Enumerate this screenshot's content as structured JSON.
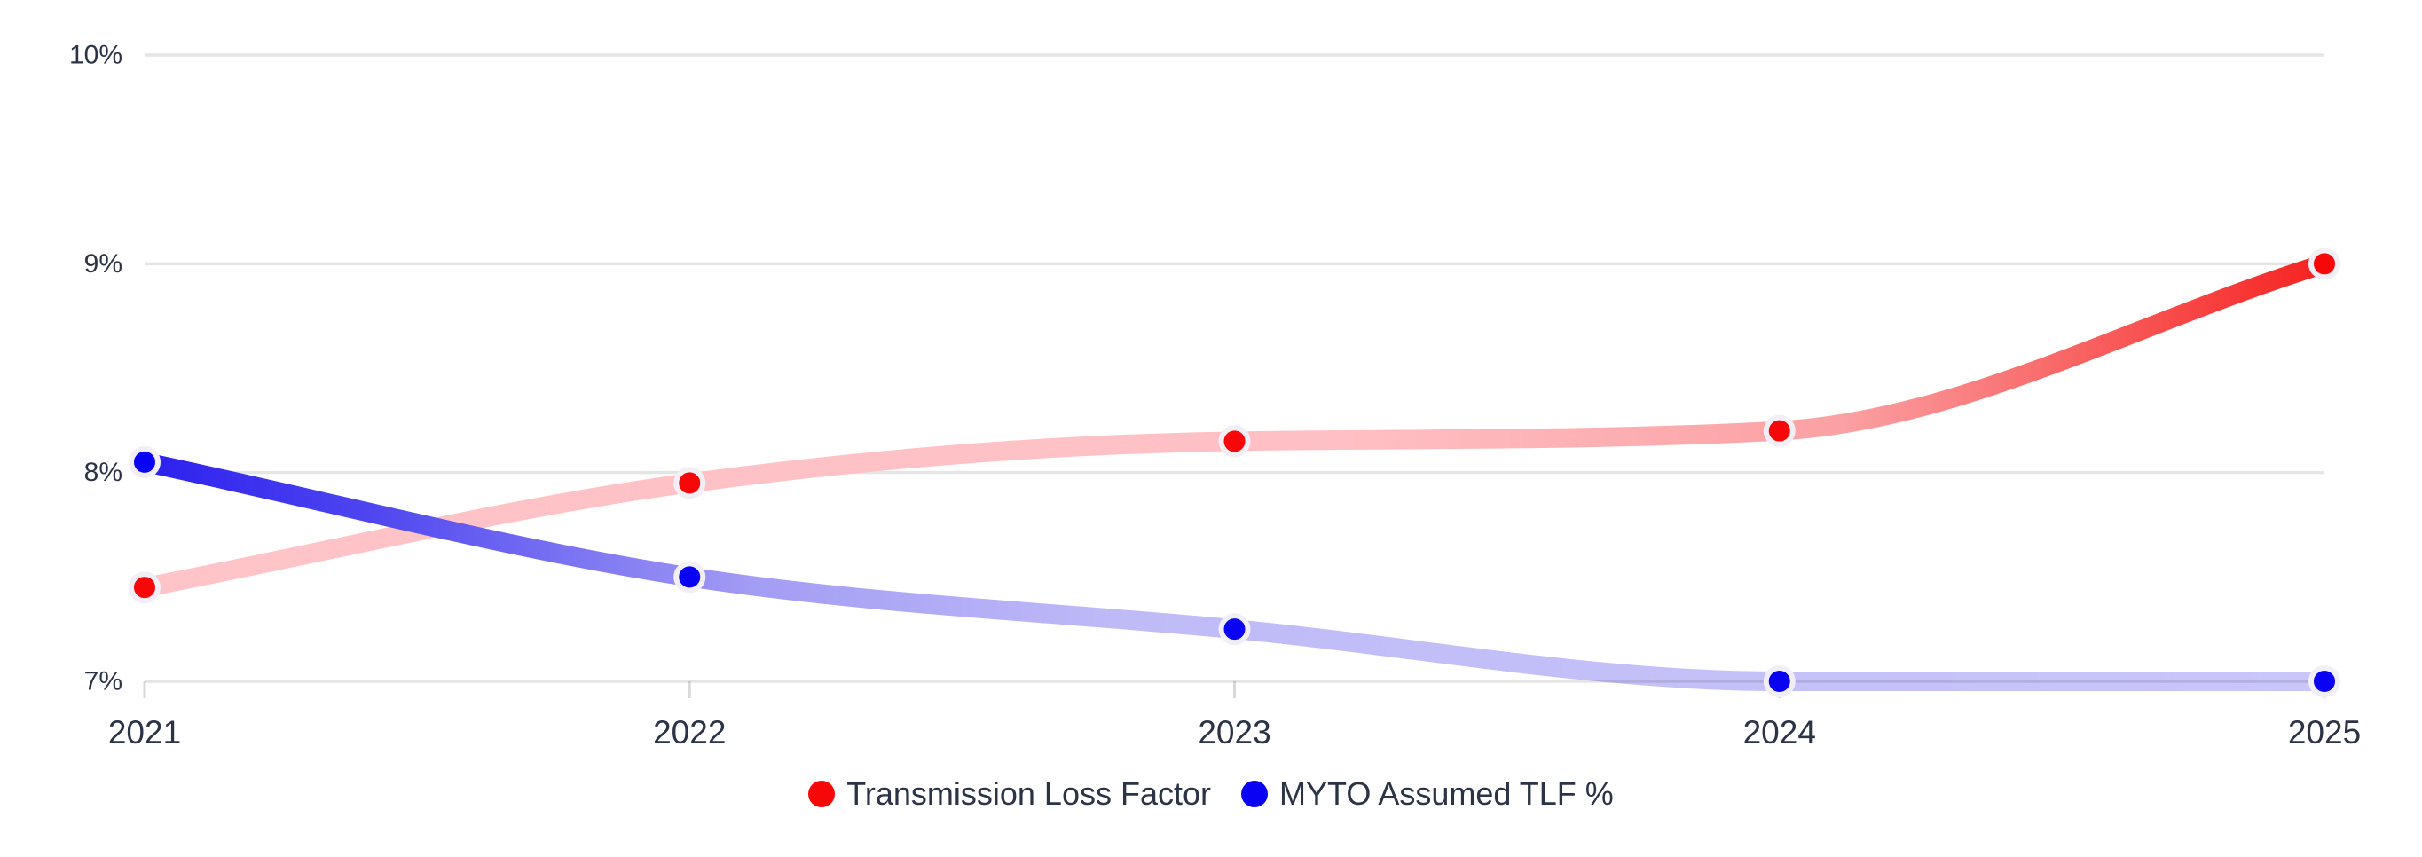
{
  "chart_data": {
    "type": "line",
    "title": "",
    "categories": [
      "2021",
      "2022",
      "2023",
      "2024",
      "2025"
    ],
    "series": [
      {
        "name": "Transmission Loss Factor",
        "values": [
          7.45,
          7.95,
          8.15,
          8.2,
          9.0
        ],
        "marker_color": "#f70808",
        "gradient": [
          [
            "0%",
            "#ffc4c8"
          ],
          [
            "55%",
            "#fec0c4"
          ],
          [
            "78%",
            "#fba0a3"
          ],
          [
            "90%",
            "#f85c5b"
          ],
          [
            "100%",
            "#f62220"
          ]
        ]
      },
      {
        "name": "MYTO Assumed TLF %",
        "values": [
          8.05,
          7.5,
          7.25,
          7.0,
          7.0
        ],
        "marker_color": "#0a02f2",
        "gradient": [
          [
            "0%",
            "#2c20ee"
          ],
          [
            "10%",
            "#4d44f0"
          ],
          [
            "28%",
            "#a39df4"
          ],
          [
            "45%",
            "#bfbbf7"
          ],
          [
            "100%",
            "#c9c6fa"
          ]
        ]
      }
    ],
    "y_ticks": [
      {
        "value": 10,
        "label": "10%"
      },
      {
        "value": 9,
        "label": "9%"
      },
      {
        "value": 8,
        "label": "8%"
      },
      {
        "value": 7,
        "label": "7%"
      }
    ],
    "ylim": [
      7,
      10
    ],
    "grid": "horizontal",
    "legend_position": "bottom-center",
    "axis_text_color": "#2b3346",
    "grid_color": "rgba(0,0,0,0.10)",
    "tick_color": "rgba(0,0,0,0.15)",
    "marker_ring_color": "#f2eef5",
    "background": "#ffffff"
  }
}
